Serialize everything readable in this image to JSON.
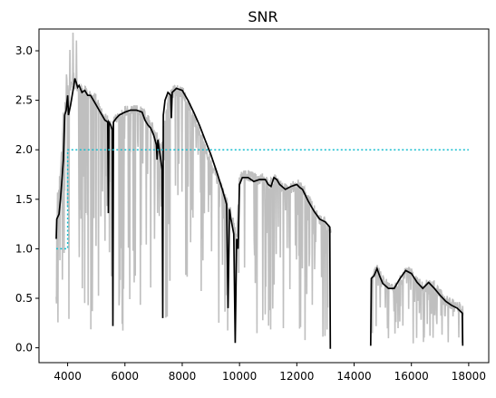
{
  "chart_data": {
    "type": "line",
    "title": "SNR",
    "xlabel": "",
    "ylabel": "",
    "xlim": [
      3000,
      18700
    ],
    "ylim": [
      -0.15,
      3.22
    ],
    "xticks": [
      4000,
      6000,
      8000,
      10000,
      12000,
      14000,
      16000,
      18000
    ],
    "yticks": [
      0.0,
      0.5,
      1.0,
      1.5,
      2.0,
      2.5,
      3.0
    ],
    "xtick_labels": [
      "4000",
      "6000",
      "8000",
      "10000",
      "12000",
      "14000",
      "16000",
      "18000"
    ],
    "ytick_labels": [
      "0.0",
      "0.5",
      "1.0",
      "1.5",
      "2.0",
      "2.5",
      "3.0"
    ],
    "grid": false,
    "legend": "none",
    "series": [
      {
        "style": "noisy",
        "color": "#bfbfbf",
        "segments": [
          [
            [
              3600,
              1.1
            ],
            [
              3700,
              1.6
            ],
            [
              3800,
              2.0
            ],
            [
              3900,
              2.4
            ],
            [
              4000,
              2.6
            ],
            [
              4100,
              2.6
            ],
            [
              4200,
              2.7
            ],
            [
              4400,
              2.6
            ],
            [
              4600,
              2.6
            ],
            [
              4800,
              2.55
            ],
            [
              5000,
              2.5
            ],
            [
              5200,
              2.35
            ],
            [
              5400,
              2.3
            ],
            [
              5550,
              2.2
            ],
            [
              5600,
              2.3
            ],
            [
              5800,
              2.35
            ],
            [
              6000,
              2.38
            ],
            [
              6200,
              2.4
            ],
            [
              6400,
              2.4
            ],
            [
              6600,
              2.38
            ],
            [
              6800,
              2.3
            ],
            [
              7000,
              2.2
            ],
            [
              7200,
              2.1
            ],
            [
              7300,
              2.05
            ],
            [
              7500,
              2.5
            ],
            [
              7700,
              2.6
            ],
            [
              7900,
              2.6
            ],
            [
              8100,
              2.55
            ],
            [
              8300,
              2.4
            ],
            [
              8500,
              2.25
            ],
            [
              8700,
              2.1
            ],
            [
              8900,
              1.95
            ],
            [
              9100,
              1.8
            ],
            [
              9300,
              1.65
            ],
            [
              9500,
              1.5
            ],
            [
              9700,
              1.35
            ],
            [
              9900,
              1.1
            ],
            [
              10000,
              1.7
            ],
            [
              10200,
              1.75
            ],
            [
              10400,
              1.73
            ],
            [
              10600,
              1.7
            ],
            [
              10800,
              1.72
            ],
            [
              11000,
              1.65
            ],
            [
              11200,
              1.72
            ],
            [
              11400,
              1.65
            ],
            [
              11600,
              1.6
            ],
            [
              11800,
              1.62
            ],
            [
              12000,
              1.65
            ],
            [
              12200,
              1.6
            ],
            [
              12400,
              1.5
            ],
            [
              12600,
              1.4
            ],
            [
              12800,
              1.3
            ],
            [
              13000,
              1.25
            ],
            [
              13200,
              1.2
            ]
          ],
          [
            [
              14600,
              0.7
            ],
            [
              14800,
              0.8
            ],
            [
              15000,
              0.7
            ],
            [
              15200,
              0.6
            ],
            [
              15400,
              0.58
            ],
            [
              15600,
              0.68
            ],
            [
              15800,
              0.77
            ],
            [
              16000,
              0.75
            ],
            [
              16200,
              0.67
            ],
            [
              16400,
              0.6
            ],
            [
              16600,
              0.65
            ],
            [
              16800,
              0.62
            ],
            [
              17000,
              0.55
            ],
            [
              17200,
              0.48
            ],
            [
              17400,
              0.44
            ],
            [
              17600,
              0.42
            ],
            [
              17800,
              0.38
            ]
          ]
        ]
      },
      {
        "style": "solid",
        "color": "#000000",
        "segments": [
          [
            [
              3600,
              1.1
            ],
            [
              3620,
              1.3
            ],
            [
              3700,
              1.35
            ],
            [
              3750,
              1.5
            ],
            [
              3800,
              1.7
            ],
            [
              3850,
              1.9
            ],
            [
              3900,
              2.35
            ],
            [
              3950,
              2.4
            ],
            [
              4000,
              2.55
            ],
            [
              4030,
              2.35
            ],
            [
              4100,
              2.45
            ],
            [
              4200,
              2.62
            ],
            [
              4250,
              2.72
            ],
            [
              4300,
              2.68
            ],
            [
              4350,
              2.63
            ],
            [
              4400,
              2.65
            ],
            [
              4500,
              2.58
            ],
            [
              4600,
              2.6
            ],
            [
              4700,
              2.55
            ],
            [
              4800,
              2.55
            ],
            [
              4900,
              2.5
            ],
            [
              5000,
              2.45
            ],
            [
              5100,
              2.4
            ],
            [
              5200,
              2.35
            ],
            [
              5300,
              2.3
            ],
            [
              5400,
              2.28
            ],
            [
              5420,
              1.36
            ],
            [
              5440,
              2.28
            ],
            [
              5500,
              2.25
            ],
            [
              5560,
              2.2
            ],
            [
              5580,
              0.22
            ],
            [
              5600,
              2.28
            ],
            [
              5700,
              2.32
            ],
            [
              5800,
              2.35
            ],
            [
              6000,
              2.38
            ],
            [
              6200,
              2.4
            ],
            [
              6400,
              2.4
            ],
            [
              6600,
              2.38
            ],
            [
              6700,
              2.3
            ],
            [
              6800,
              2.25
            ],
            [
              6900,
              2.22
            ],
            [
              7000,
              2.15
            ],
            [
              7100,
              2.05
            ],
            [
              7120,
              1.9
            ],
            [
              7150,
              2.1
            ],
            [
              7200,
              2.0
            ],
            [
              7250,
              1.9
            ],
            [
              7300,
              1.8
            ],
            [
              7320,
              0.3
            ],
            [
              7340,
              2.35
            ],
            [
              7400,
              2.5
            ],
            [
              7500,
              2.58
            ],
            [
              7600,
              2.55
            ],
            [
              7620,
              2.32
            ],
            [
              7650,
              2.58
            ],
            [
              7800,
              2.62
            ],
            [
              8000,
              2.6
            ],
            [
              8200,
              2.5
            ],
            [
              8400,
              2.38
            ],
            [
              8600,
              2.25
            ],
            [
              8800,
              2.1
            ],
            [
              9000,
              1.95
            ],
            [
              9200,
              1.78
            ],
            [
              9400,
              1.6
            ],
            [
              9550,
              1.45
            ],
            [
              9600,
              0.4
            ],
            [
              9650,
              1.4
            ],
            [
              9700,
              1.3
            ],
            [
              9800,
              1.15
            ],
            [
              9850,
              0.05
            ],
            [
              9900,
              1.1
            ],
            [
              9950,
              1.0
            ],
            [
              10000,
              1.65
            ],
            [
              10100,
              1.72
            ],
            [
              10300,
              1.72
            ],
            [
              10500,
              1.68
            ],
            [
              10700,
              1.7
            ],
            [
              10900,
              1.7
            ],
            [
              11000,
              1.65
            ],
            [
              11100,
              1.63
            ],
            [
              11200,
              1.72
            ],
            [
              11300,
              1.7
            ],
            [
              11400,
              1.65
            ],
            [
              11600,
              1.6
            ],
            [
              11800,
              1.63
            ],
            [
              12000,
              1.65
            ],
            [
              12100,
              1.62
            ],
            [
              12200,
              1.6
            ],
            [
              12400,
              1.48
            ],
            [
              12600,
              1.38
            ],
            [
              12800,
              1.3
            ],
            [
              13000,
              1.27
            ],
            [
              13150,
              1.22
            ],
            [
              13170,
              -0.01
            ]
          ],
          [
            [
              14580,
              0.02
            ],
            [
              14600,
              0.7
            ],
            [
              14700,
              0.73
            ],
            [
              14800,
              0.8
            ],
            [
              14900,
              0.72
            ],
            [
              15000,
              0.65
            ],
            [
              15200,
              0.6
            ],
            [
              15400,
              0.6
            ],
            [
              15600,
              0.7
            ],
            [
              15800,
              0.78
            ],
            [
              16000,
              0.75
            ],
            [
              16200,
              0.66
            ],
            [
              16400,
              0.6
            ],
            [
              16600,
              0.66
            ],
            [
              16800,
              0.6
            ],
            [
              17000,
              0.53
            ],
            [
              17200,
              0.47
            ],
            [
              17400,
              0.43
            ],
            [
              17600,
              0.4
            ],
            [
              17780,
              0.35
            ],
            [
              17790,
              0.02
            ]
          ]
        ]
      },
      {
        "style": "dotted",
        "color": "#17becf",
        "segments": [
          [
            [
              3600,
              1.0
            ],
            [
              4000,
              1.0
            ],
            [
              4000,
              2.0
            ],
            [
              18000,
              2.0
            ]
          ]
        ]
      }
    ]
  }
}
